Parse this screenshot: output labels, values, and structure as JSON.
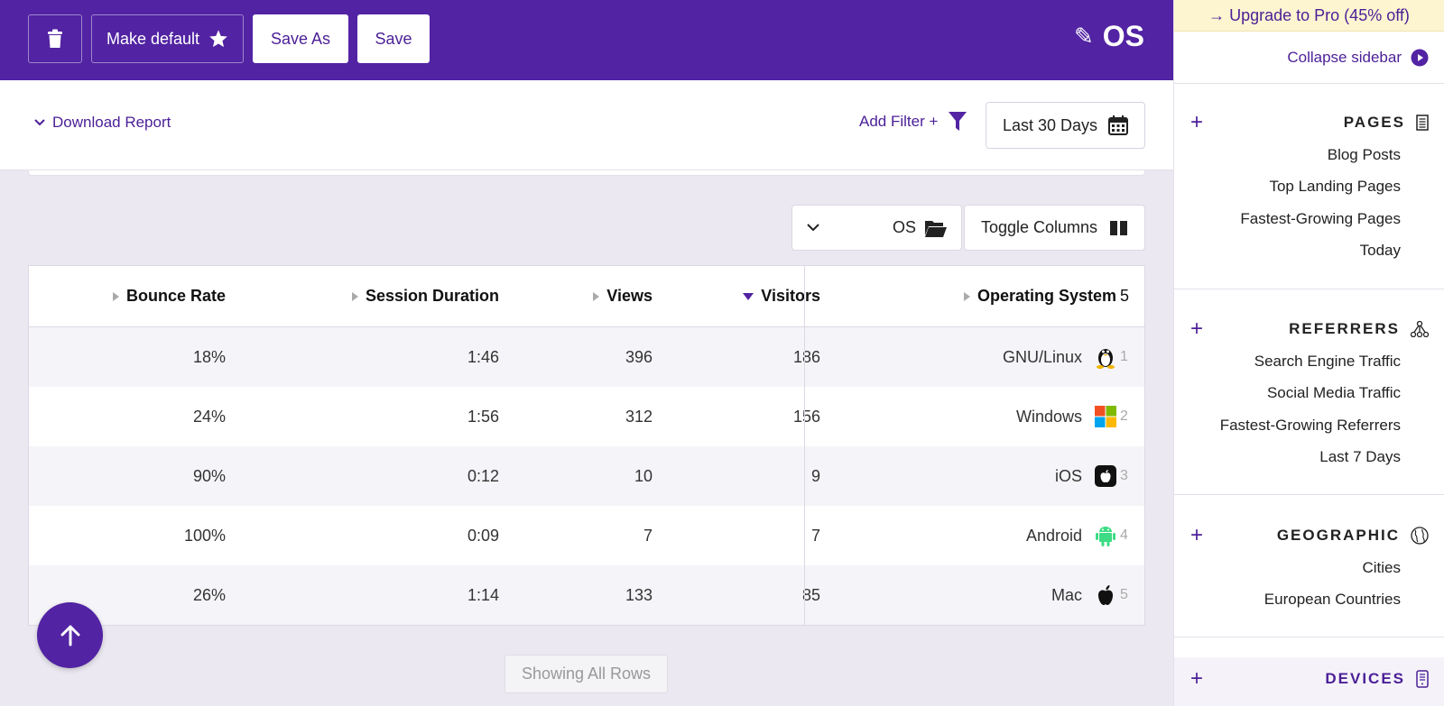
{
  "toolbar": {
    "make_default_label": "Make default",
    "save_as_label": "Save As",
    "save_label": "Save",
    "report_title": "OS"
  },
  "filters": {
    "download_label": "Download Report",
    "add_filter_label": "Add Filter +",
    "date_range_label": "Last 30 Days"
  },
  "table_controls": {
    "dimension_label": "OS",
    "toggle_columns_label": "Toggle Columns"
  },
  "table": {
    "headers": {
      "bounce_rate": "Bounce Rate",
      "session_duration": "Session Duration",
      "views": "Views",
      "visitors": "Visitors",
      "operating_system": "Operating System",
      "row_count": "5"
    },
    "sorted_by": "Visitors",
    "rows": [
      {
        "bounce_rate": "18%",
        "session_duration": "1:46",
        "views": "396",
        "visitors": "186",
        "os": "GNU/Linux",
        "icon": "linux-icon",
        "index": "1"
      },
      {
        "bounce_rate": "24%",
        "session_duration": "1:56",
        "views": "312",
        "visitors": "156",
        "os": "Windows",
        "icon": "windows-icon",
        "index": "2"
      },
      {
        "bounce_rate": "90%",
        "session_duration": "0:12",
        "views": "10",
        "visitors": "9",
        "os": "iOS",
        "icon": "ios-icon",
        "index": "3"
      },
      {
        "bounce_rate": "100%",
        "session_duration": "0:09",
        "views": "7",
        "visitors": "7",
        "os": "Android",
        "icon": "android-icon",
        "index": "4"
      },
      {
        "bounce_rate": "26%",
        "session_duration": "1:14",
        "views": "133",
        "visitors": "85",
        "os": "Mac",
        "icon": "apple-icon",
        "index": "5"
      }
    ],
    "footer_label": "Showing All Rows"
  },
  "sidebar": {
    "upgrade_label": "→ Upgrade to Pro (45% off)",
    "collapse_label": "Collapse sidebar",
    "sections": [
      {
        "title": "PAGES",
        "icon": "document-icon",
        "items": [
          "Blog Posts",
          "Top Landing Pages",
          "Fastest-Growing Pages",
          "Today"
        ]
      },
      {
        "title": "REFERRERS",
        "icon": "network-icon",
        "items": [
          "Search Engine Traffic",
          "Social Media Traffic",
          "Fastest-Growing Referrers",
          "Last 7 Days"
        ]
      },
      {
        "title": "GEOGRAPHIC",
        "icon": "globe-icon",
        "items": [
          "Cities",
          "European Countries"
        ]
      },
      {
        "title": "DEVICES",
        "icon": "phone-icon",
        "items": []
      }
    ]
  },
  "colors": {
    "brand_purple": "#5223a3",
    "link_purple": "#4b1f97",
    "upgrade_bg": "#fdf5d0",
    "page_bg": "#ebe8f1"
  }
}
